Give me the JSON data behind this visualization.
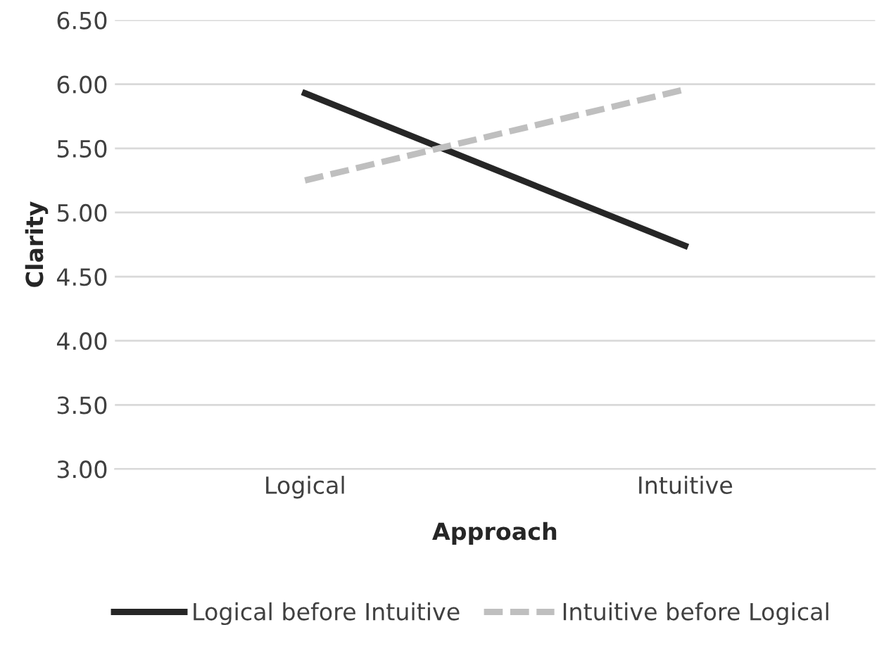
{
  "chart_data": {
    "type": "line",
    "xlabel": "Approach",
    "ylabel": "Clarity",
    "categories": [
      "Logical",
      "Intuitive"
    ],
    "series": [
      {
        "name": "Logical before Intuitive",
        "color": "#262626",
        "values": [
          5.93,
          4.74
        ],
        "line_style": "solid"
      },
      {
        "name": "Intuitive before Logical",
        "color": "#bfbfbf",
        "values": [
          5.25,
          5.96
        ],
        "line_style": "dashed"
      }
    ],
    "ylim": [
      3.0,
      6.5
    ],
    "yticks": [
      {
        "value": 3.0,
        "label": "3.00"
      },
      {
        "value": 3.5,
        "label": "3.50"
      },
      {
        "value": 4.0,
        "label": "4.00"
      },
      {
        "value": 4.5,
        "label": "4.50"
      },
      {
        "value": 5.0,
        "label": "5.00"
      },
      {
        "value": 5.5,
        "label": "5.50"
      },
      {
        "value": 6.0,
        "label": "6.00"
      },
      {
        "value": 6.5,
        "label": "6.50"
      }
    ],
    "grid": "y",
    "legend": "bottom",
    "marker": "none"
  }
}
